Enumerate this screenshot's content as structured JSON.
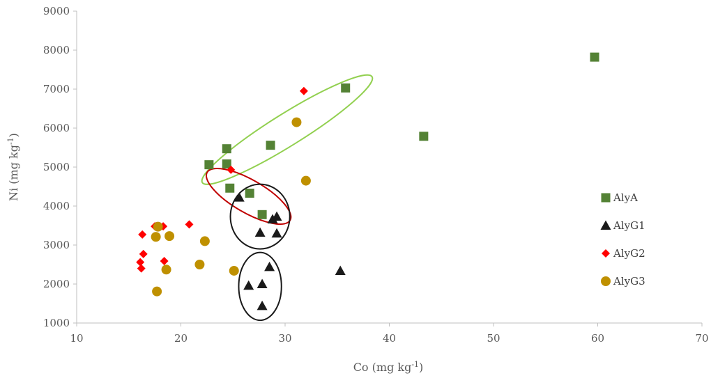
{
  "chart_data": {
    "type": "scatter",
    "title": "",
    "xlabel": "Co (mg kg",
    "xlabel_sup": "-1",
    "xlabel_end": ")",
    "ylabel": "Ni (mg kg",
    "ylabel_sup": "-1",
    "ylabel_end": ")",
    "xlim": [
      10,
      70
    ],
    "ylim": [
      1000,
      9000
    ],
    "xticks": [
      "10",
      "20",
      "30",
      "40",
      "50",
      "60",
      "70"
    ],
    "yticks": [
      "1000",
      "2000",
      "3000",
      "4000",
      "5000",
      "6000",
      "7000",
      "8000",
      "9000"
    ],
    "grid": false,
    "legend_position": "right",
    "series": [
      {
        "name": "AlyA",
        "marker": "square",
        "color": "#548235",
        "points": [
          [
            59.7,
            7820
          ],
          [
            35.8,
            7030
          ],
          [
            43.3,
            5790
          ],
          [
            28.6,
            5560
          ],
          [
            24.4,
            5470
          ],
          [
            22.7,
            5060
          ],
          [
            24.4,
            5080
          ],
          [
            24.7,
            4460
          ],
          [
            26.6,
            4330
          ],
          [
            27.8,
            3780
          ]
        ]
      },
      {
        "name": "AlyG1",
        "marker": "triangle",
        "color": "#1a1a1a",
        "points": [
          [
            25.6,
            4220
          ],
          [
            29.2,
            3730
          ],
          [
            28.8,
            3660
          ],
          [
            27.6,
            3320
          ],
          [
            29.2,
            3300
          ],
          [
            35.3,
            2340
          ],
          [
            28.5,
            2440
          ],
          [
            26.5,
            1960
          ],
          [
            27.8,
            2000
          ],
          [
            27.8,
            1440
          ]
        ]
      },
      {
        "name": "AlyG2",
        "marker": "diamond",
        "color": "#ff0000",
        "points": [
          [
            31.8,
            6950
          ],
          [
            24.8,
            4930
          ],
          [
            20.8,
            3530
          ],
          [
            18.3,
            3480
          ],
          [
            17.5,
            3480
          ],
          [
            16.3,
            3270
          ],
          [
            16.4,
            2770
          ],
          [
            16.1,
            2560
          ],
          [
            18.4,
            2590
          ],
          [
            16.2,
            2400
          ]
        ]
      },
      {
        "name": "AlyG3",
        "marker": "circle",
        "color": "#bf9000",
        "points": [
          [
            31.1,
            6150
          ],
          [
            32.0,
            4650
          ],
          [
            17.8,
            3470
          ],
          [
            17.6,
            3210
          ],
          [
            18.9,
            3230
          ],
          [
            22.3,
            3100
          ],
          [
            21.8,
            2500
          ],
          [
            18.6,
            2370
          ],
          [
            25.1,
            2340
          ],
          [
            17.7,
            1810
          ]
        ]
      }
    ],
    "annotations": [
      {
        "shape": "ellipse",
        "color": "#92d050",
        "cx": 30.2,
        "cy": 5960,
        "rx": 9.6,
        "ry": 410,
        "angle_deg": -32
      },
      {
        "shape": "ellipse",
        "color": "#c00000",
        "cx": 26.5,
        "cy": 4250,
        "rx": 4.6,
        "ry": 420,
        "angle_deg": 30
      },
      {
        "shape": "ellipse",
        "color": "#1a1a1a",
        "cx": 27.6,
        "cy": 3730,
        "rx": 2.85,
        "ry": 830,
        "angle_deg": 0
      },
      {
        "shape": "ellipse",
        "color": "#1a1a1a",
        "cx": 27.6,
        "cy": 1940,
        "rx": 2.05,
        "ry": 870,
        "angle_deg": 0
      }
    ]
  }
}
